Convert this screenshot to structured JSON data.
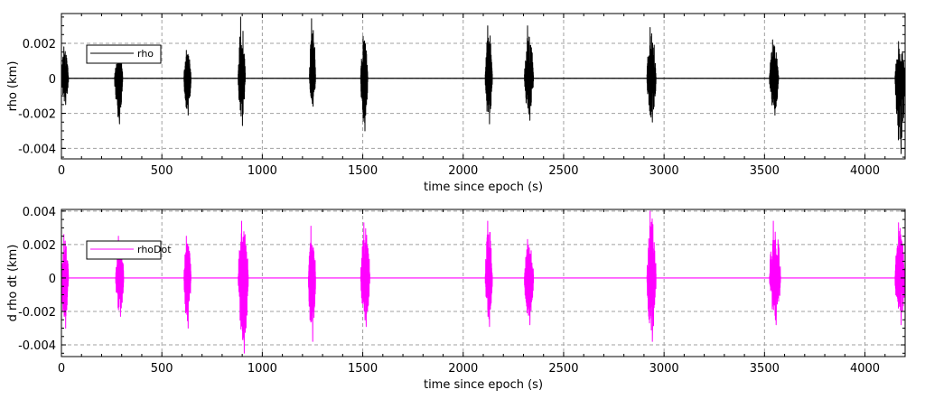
{
  "chart_data": [
    {
      "type": "line",
      "xlabel": "time since epoch (s)",
      "ylabel": "rho (km)",
      "xlim": [
        0,
        4200
      ],
      "ylim": [
        -0.0046,
        0.0037
      ],
      "xticks": [
        0,
        500,
        1000,
        1500,
        2000,
        2500,
        3000,
        3500,
        4000
      ],
      "xtick_labels": [
        "0",
        "500",
        "1000",
        "1500",
        "2000",
        "2500",
        "3000",
        "3500",
        "4000"
      ],
      "yticks": [
        0.002,
        0,
        -0.002,
        -0.004
      ],
      "ytick_labels": [
        "0.002",
        "0",
        "-0.002",
        "-0.004"
      ],
      "grid": true,
      "legend_position": "top-left",
      "series": [
        {
          "name": "rho",
          "color": "#000000",
          "baseline": 0,
          "bursts": [
            {
              "start": 0,
              "end": 35,
              "peak": 0.0018,
              "trough": -0.0015
            },
            {
              "start": 265,
              "end": 305,
              "peak": 0.0016,
              "trough": -0.0026
            },
            {
              "start": 610,
              "end": 645,
              "peak": 0.0016,
              "trough": -0.0021
            },
            {
              "start": 880,
              "end": 915,
              "peak": 0.0035,
              "trough": -0.0027
            },
            {
              "start": 1235,
              "end": 1265,
              "peak": 0.0034,
              "trough": -0.0016
            },
            {
              "start": 1490,
              "end": 1525,
              "peak": 0.0024,
              "trough": -0.003
            },
            {
              "start": 2110,
              "end": 2145,
              "peak": 0.003,
              "trough": -0.0026
            },
            {
              "start": 2305,
              "end": 2350,
              "peak": 0.003,
              "trough": -0.0024
            },
            {
              "start": 2915,
              "end": 2960,
              "peak": 0.0029,
              "trough": -0.0025
            },
            {
              "start": 3525,
              "end": 3570,
              "peak": 0.0022,
              "trough": -0.0021
            },
            {
              "start": 4150,
              "end": 4200,
              "peak": 0.0021,
              "trough": -0.0043
            }
          ]
        }
      ]
    },
    {
      "type": "line",
      "xlabel": "time since epoch (s)",
      "ylabel": "d rho dt (km)",
      "xlim": [
        0,
        4200
      ],
      "ylim": [
        -0.0047,
        0.0041
      ],
      "xticks": [
        0,
        500,
        1000,
        1500,
        2000,
        2500,
        3000,
        3500,
        4000
      ],
      "xtick_labels": [
        "0",
        "500",
        "1000",
        "1500",
        "2000",
        "2500",
        "3000",
        "3500",
        "4000"
      ],
      "yticks": [
        0.004,
        0.002,
        0,
        -0.002,
        -0.004
      ],
      "ytick_labels": [
        "0.004",
        "0.002",
        "0",
        "-0.002",
        "-0.004"
      ],
      "grid": true,
      "legend_position": "top-left",
      "series": [
        {
          "name": "rhoDot",
          "color": "#ff00ff",
          "baseline": 0,
          "bursts": [
            {
              "start": 0,
              "end": 35,
              "peak": 0.0026,
              "trough": -0.003
            },
            {
              "start": 270,
              "end": 310,
              "peak": 0.0025,
              "trough": -0.0023
            },
            {
              "start": 610,
              "end": 645,
              "peak": 0.0025,
              "trough": -0.003
            },
            {
              "start": 880,
              "end": 930,
              "peak": 0.0034,
              "trough": -0.0045
            },
            {
              "start": 1230,
              "end": 1265,
              "peak": 0.0031,
              "trough": -0.0038
            },
            {
              "start": 1490,
              "end": 1535,
              "peak": 0.0033,
              "trough": -0.0029
            },
            {
              "start": 2110,
              "end": 2145,
              "peak": 0.0034,
              "trough": -0.0029
            },
            {
              "start": 2305,
              "end": 2350,
              "peak": 0.0023,
              "trough": -0.0028
            },
            {
              "start": 2915,
              "end": 2960,
              "peak": 0.004,
              "trough": -0.0038
            },
            {
              "start": 3525,
              "end": 3580,
              "peak": 0.0034,
              "trough": -0.0028
            },
            {
              "start": 4150,
              "end": 4200,
              "peak": 0.0033,
              "trough": -0.0028
            }
          ]
        }
      ]
    }
  ]
}
